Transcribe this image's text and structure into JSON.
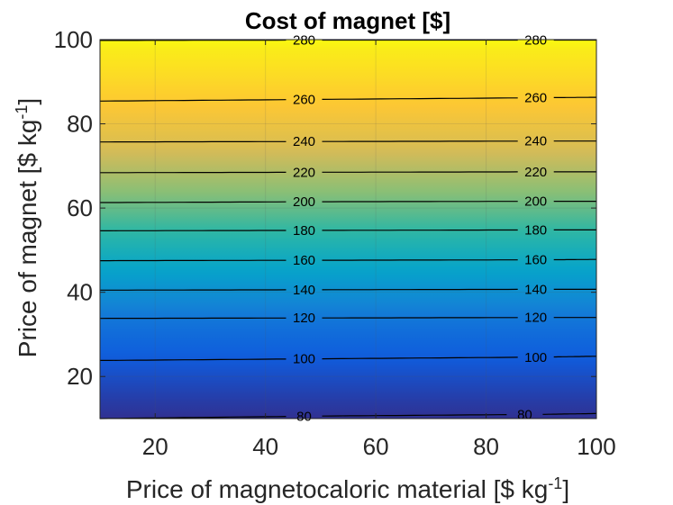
{
  "chart_data": {
    "type": "heatmap",
    "subtype": "filled-contour",
    "title": "Cost of magnet [$]",
    "xlabel": "Price of magnetocaloric material [$ kg",
    "xlabel_sup": "-1",
    "xlabel_suffix": "]",
    "ylabel": "Price of magnet [$ kg",
    "ylabel_sup": "-1",
    "ylabel_suffix": "]",
    "xlim": [
      10,
      100
    ],
    "ylim": [
      10,
      100
    ],
    "xticks": [
      20,
      40,
      60,
      80,
      100
    ],
    "yticks": [
      20,
      40,
      60,
      80,
      100
    ],
    "grid": true,
    "colormap": "parula",
    "color_range": [
      75,
      285
    ],
    "colormap_stops": [
      "#352a87",
      "#0f5cdd",
      "#1481d6",
      "#06a4ca",
      "#2eb7a4",
      "#87bf77",
      "#d1bb59",
      "#fec832",
      "#f9fb0e"
    ],
    "contour_levels": [
      {
        "level": 80,
        "y_at_x": [
          [
            10,
            10.0
          ],
          [
            50,
            10.6
          ],
          [
            90,
            11.0
          ],
          [
            100,
            11.2
          ]
        ],
        "label_x": [
          47,
          87
        ]
      },
      {
        "level": 100,
        "y_at_x": [
          [
            10,
            23.8
          ],
          [
            50,
            24.2
          ],
          [
            90,
            24.6
          ],
          [
            100,
            24.8
          ]
        ],
        "label_x": [
          47,
          89
        ]
      },
      {
        "level": 120,
        "y_at_x": [
          [
            10,
            33.8
          ],
          [
            50,
            33.9
          ],
          [
            90,
            34.0
          ],
          [
            100,
            34.0
          ]
        ],
        "label_x": [
          47,
          89
        ]
      },
      {
        "level": 140,
        "y_at_x": [
          [
            10,
            40.5
          ],
          [
            50,
            40.6
          ],
          [
            90,
            40.7
          ],
          [
            100,
            40.7
          ]
        ],
        "label_x": [
          47,
          89
        ]
      },
      {
        "level": 160,
        "y_at_x": [
          [
            10,
            47.5
          ],
          [
            50,
            47.6
          ],
          [
            90,
            47.7
          ],
          [
            100,
            47.8
          ]
        ],
        "label_x": [
          47,
          89
        ]
      },
      {
        "level": 180,
        "y_at_x": [
          [
            10,
            54.6
          ],
          [
            50,
            54.7
          ],
          [
            90,
            54.8
          ],
          [
            100,
            54.8
          ]
        ],
        "label_x": [
          47,
          89
        ]
      },
      {
        "level": 200,
        "y_at_x": [
          [
            10,
            61.3
          ],
          [
            50,
            61.5
          ],
          [
            90,
            61.6
          ],
          [
            100,
            61.6
          ]
        ],
        "label_x": [
          47,
          89
        ]
      },
      {
        "level": 220,
        "y_at_x": [
          [
            10,
            68.4
          ],
          [
            50,
            68.5
          ],
          [
            90,
            68.6
          ],
          [
            100,
            68.6
          ]
        ],
        "label_x": [
          47,
          89
        ]
      },
      {
        "level": 240,
        "y_at_x": [
          [
            10,
            75.7
          ],
          [
            50,
            75.8
          ],
          [
            90,
            75.9
          ],
          [
            100,
            75.9
          ]
        ],
        "label_x": [
          47,
          89
        ]
      },
      {
        "level": 260,
        "y_at_x": [
          [
            10,
            85.4
          ],
          [
            50,
            85.8
          ],
          [
            90,
            86.2
          ],
          [
            100,
            86.3
          ]
        ],
        "label_x": [
          47,
          89
        ]
      },
      {
        "level": 280,
        "y_at_x": [
          [
            10,
            99.8
          ],
          [
            50,
            99.9
          ],
          [
            90,
            99.9
          ],
          [
            100,
            99.9
          ]
        ],
        "label_x": [
          47,
          89
        ]
      }
    ]
  }
}
